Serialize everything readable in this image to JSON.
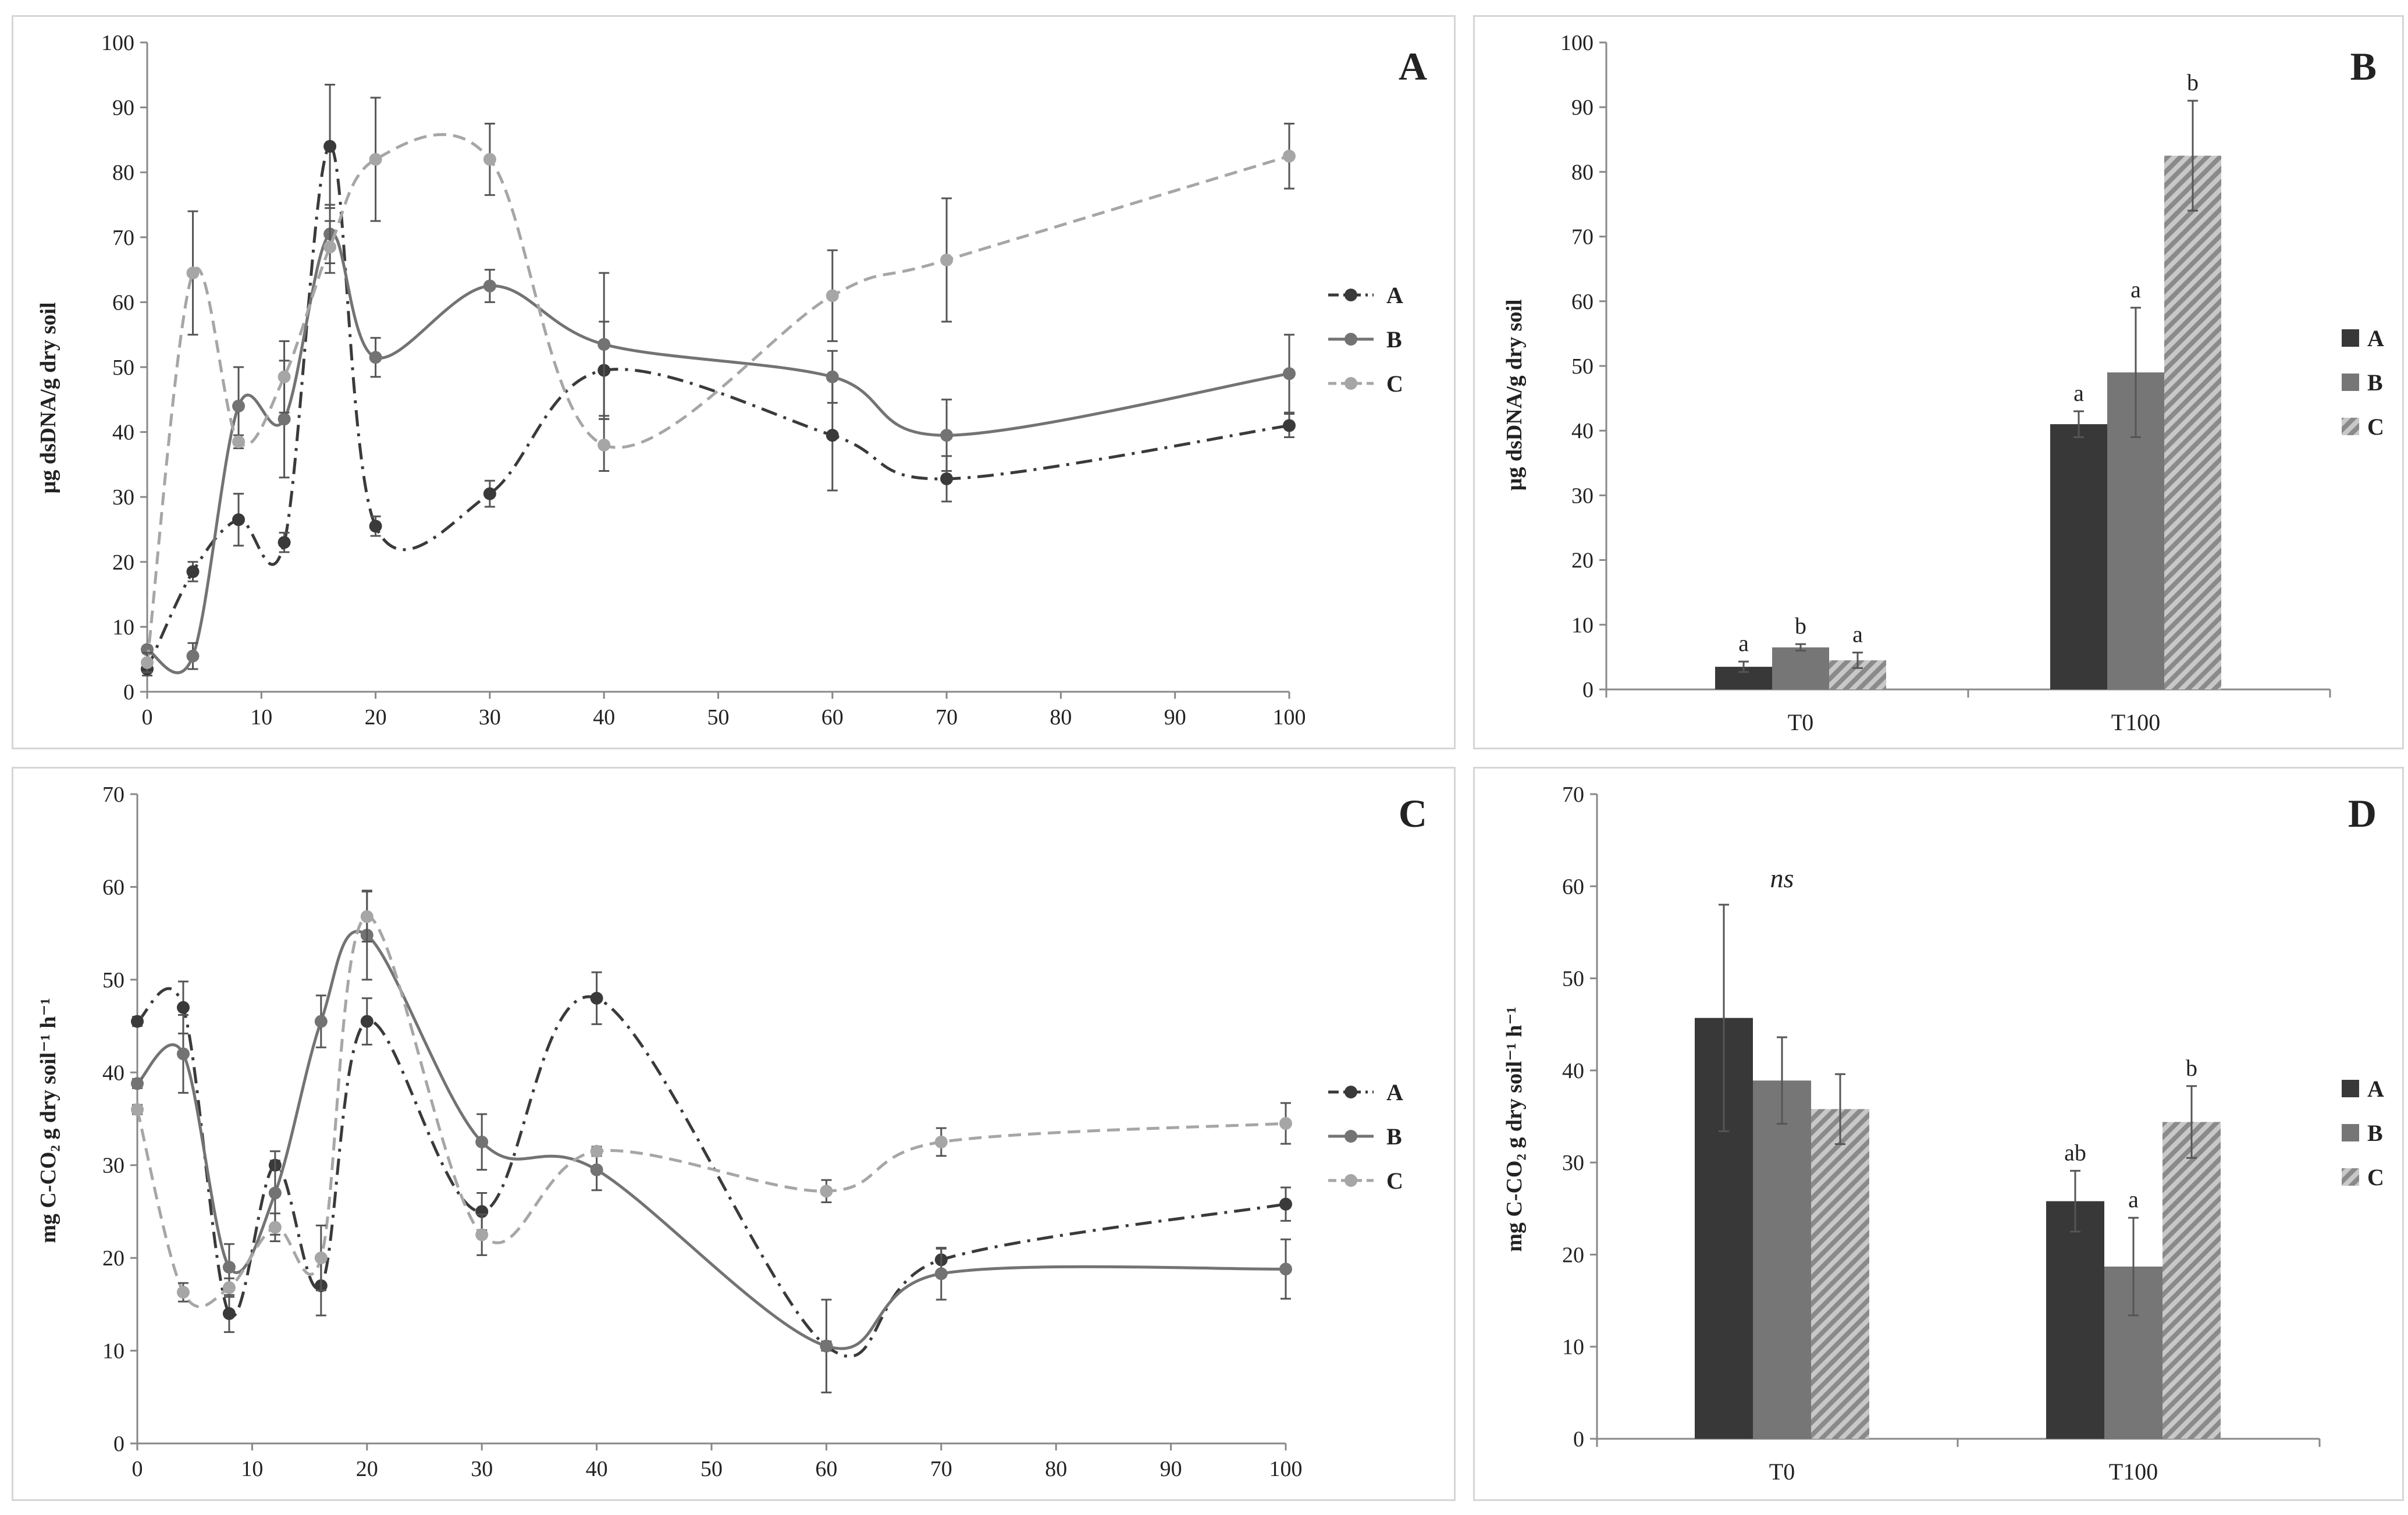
{
  "chart_data": [
    {
      "type": "line",
      "panel_label": "A",
      "ylabel": "µg dsDNA/g dry soil",
      "ylim": [
        0,
        100
      ],
      "yticks": [
        0,
        10,
        20,
        30,
        40,
        50,
        60,
        70,
        80,
        90,
        100
      ],
      "xlim": [
        0,
        100
      ],
      "xticks": [
        0,
        10,
        20,
        30,
        40,
        50,
        60,
        70,
        80,
        90,
        100
      ],
      "legend": "right",
      "series": [
        {
          "name": "A",
          "color": "#3a3a3a",
          "dash": "dashdot",
          "x": [
            0,
            4,
            8,
            12,
            16,
            20,
            30,
            40,
            60,
            70,
            100
          ],
          "y": [
            3.5,
            18.5,
            26.5,
            23,
            84,
            25.5,
            30.5,
            49.5,
            39.5,
            32.8,
            41
          ],
          "err": [
            1,
            1.5,
            4,
            1.5,
            9.5,
            1.5,
            2,
            7.5,
            8.5,
            3.5,
            1.8
          ]
        },
        {
          "name": "B",
          "color": "#737373",
          "dash": "solid",
          "x": [
            0,
            4,
            8,
            12,
            16,
            20,
            30,
            40,
            60,
            70,
            100
          ],
          "y": [
            6.5,
            5.5,
            44,
            42,
            70.5,
            51.5,
            62.5,
            53.5,
            48.5,
            39.5,
            49
          ],
          "err": [
            0.5,
            2,
            6,
            9,
            4.5,
            3,
            2.5,
            11,
            4,
            5.5,
            6
          ]
        },
        {
          "name": "C",
          "color": "#a6a6a6",
          "dash": "dashed",
          "x": [
            0,
            4,
            8,
            12,
            16,
            20,
            30,
            40,
            60,
            70,
            100
          ],
          "y": [
            4.5,
            64.5,
            38.5,
            48.5,
            68.5,
            82,
            82,
            38,
            61,
            66.5,
            82.5
          ],
          "err": [
            1.5,
            9.5,
            1,
            5.5,
            4,
            9.5,
            5.5,
            4,
            7,
            9.5,
            5
          ]
        }
      ]
    },
    {
      "type": "bar",
      "panel_label": "B",
      "ylabel": "µg dsDNA/g dry soil",
      "ylim": [
        0,
        100
      ],
      "yticks": [
        0,
        10,
        20,
        30,
        40,
        50,
        60,
        70,
        80,
        90,
        100
      ],
      "categories": [
        "T0",
        "T100"
      ],
      "legend": "right",
      "series": [
        {
          "name": "A",
          "color": "#383838",
          "values": [
            3.5,
            41
          ],
          "err": [
            0.8,
            2
          ],
          "letters": [
            "a",
            "a"
          ]
        },
        {
          "name": "B",
          "color": "#767676",
          "values": [
            6.5,
            49
          ],
          "err": [
            0.5,
            10
          ],
          "letters": [
            "b",
            "a"
          ]
        },
        {
          "name": "C",
          "color": "#a8a8a8",
          "hatch": true,
          "values": [
            4.5,
            82.5
          ],
          "err": [
            1.2,
            8.5
          ],
          "letters": [
            "a",
            "b"
          ]
        }
      ]
    },
    {
      "type": "line",
      "panel_label": "C",
      "ylabel": "mg C-CO₂ g dry soil⁻¹ h⁻¹",
      "ylim": [
        0,
        70
      ],
      "yticks": [
        0,
        10,
        20,
        30,
        40,
        50,
        60,
        70
      ],
      "xlim": [
        0,
        100
      ],
      "xticks": [
        0,
        10,
        20,
        30,
        40,
        50,
        60,
        70,
        80,
        90,
        100
      ],
      "legend": "right",
      "series": [
        {
          "name": "A",
          "color": "#3a3a3a",
          "dash": "dashdot",
          "x": [
            0,
            4,
            8,
            12,
            16,
            20,
            30,
            40,
            60,
            70,
            100
          ],
          "y": [
            45.5,
            47,
            14,
            30,
            17,
            45.5,
            25,
            48,
            10.5,
            19.8,
            25.8
          ],
          "err": [
            0.5,
            2.8,
            2,
            0.5,
            3.2,
            2.5,
            2,
            2.8,
            0.5,
            1.2,
            1.8
          ]
        },
        {
          "name": "B",
          "color": "#737373",
          "dash": "solid",
          "x": [
            0,
            4,
            8,
            12,
            16,
            20,
            30,
            40,
            60,
            70,
            100
          ],
          "y": [
            38.8,
            42,
            19,
            27,
            45.5,
            54.8,
            32.5,
            29.5,
            10.5,
            18.3,
            18.8
          ],
          "err": [
            0.5,
            4.2,
            2.5,
            4.5,
            2.8,
            4.8,
            3,
            2.2,
            5,
            2.8,
            3.2
          ]
        },
        {
          "name": "C",
          "color": "#a6a6a6",
          "dash": "dashed",
          "x": [
            0,
            4,
            8,
            12,
            16,
            20,
            30,
            40,
            60,
            70,
            100
          ],
          "y": [
            36,
            16.3,
            16.8,
            23.3,
            20,
            56.8,
            22.5,
            31.5,
            27.2,
            32.5,
            34.5
          ],
          "err": [
            0.5,
            1,
            1,
            1.5,
            3.5,
            2.7,
            2.2,
            0.5,
            1.2,
            1.5,
            2.2
          ]
        }
      ]
    },
    {
      "type": "bar",
      "panel_label": "D",
      "ylabel": "mg C-CO₂ g dry soil⁻¹ h⁻¹",
      "ylim": [
        0,
        70
      ],
      "yticks": [
        0,
        10,
        20,
        30,
        40,
        50,
        60,
        70
      ],
      "categories": [
        "T0",
        "T100"
      ],
      "legend": "right",
      "group_annotations": [
        "ns",
        ""
      ],
      "series": [
        {
          "name": "A",
          "color": "#383838",
          "values": [
            45.7,
            25.8
          ],
          "err": [
            12.3,
            3.3
          ],
          "letters": [
            "",
            "ab"
          ]
        },
        {
          "name": "B",
          "color": "#767676",
          "values": [
            38.9,
            18.7
          ],
          "err": [
            4.7,
            5.3
          ],
          "letters": [
            "",
            "a"
          ]
        },
        {
          "name": "C",
          "color": "#a8a8a8",
          "hatch": true,
          "values": [
            35.8,
            34.4
          ],
          "err": [
            3.8,
            3.9
          ],
          "letters": [
            "",
            "b"
          ]
        }
      ]
    }
  ]
}
